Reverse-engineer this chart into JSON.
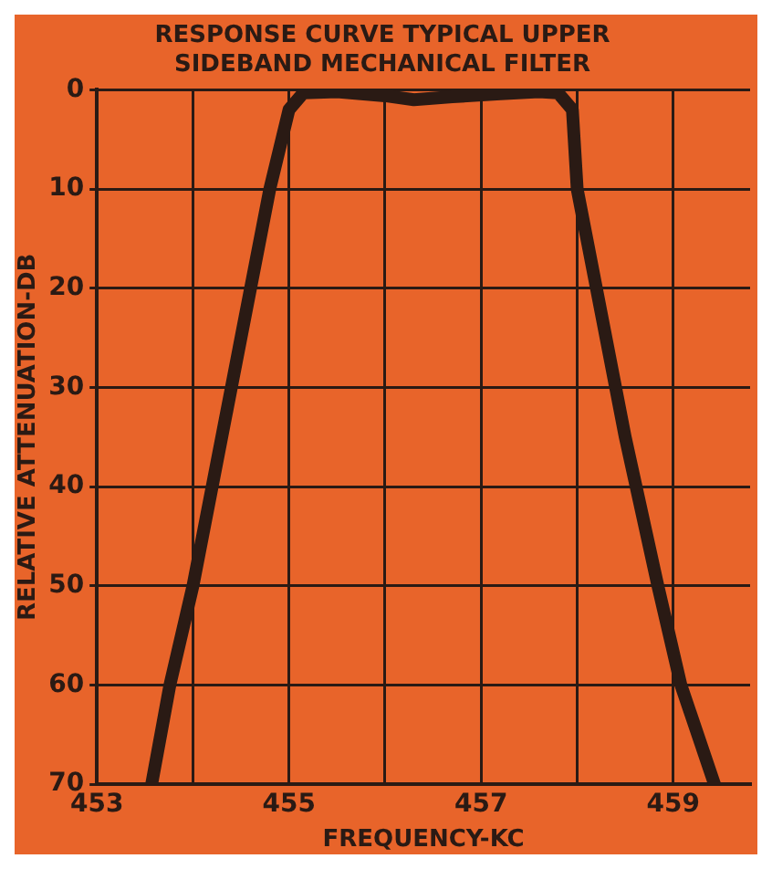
{
  "chart_data": {
    "type": "line",
    "title": "RESPONSE CURVE TYPICAL UPPER SIDEBAND MECHANICAL FILTER",
    "xlabel": "FREQUENCY-KC",
    "ylabel": "RELATIVE ATTENUATION-DB",
    "x": [
      453.57,
      453.76,
      454.0,
      454.4,
      454.8,
      455.0,
      455.15,
      455.5,
      456.0,
      456.3,
      456.7,
      457.2,
      457.6,
      457.8,
      457.95,
      458.0,
      458.2,
      458.5,
      458.84,
      459.08,
      459.43
    ],
    "series": [
      {
        "color": "#2a1a14",
        "values": [
          70,
          60,
          50,
          30,
          10,
          2,
          0.3,
          0.2,
          0.6,
          1,
          0.7,
          0.4,
          0.2,
          0.3,
          2,
          10,
          20,
          35,
          50,
          60,
          70
        ]
      }
    ],
    "xlim": [
      453,
      459.8
    ],
    "xticks": [
      453,
      {
        "value": 454,
        "label": null
      },
      455,
      {
        "value": 456,
        "label": null
      },
      457,
      {
        "value": 458,
        "label": null
      },
      459
    ],
    "ylim": [
      70,
      0
    ],
    "yticks": [
      0,
      10,
      20,
      30,
      40,
      50,
      60,
      70
    ],
    "grid": true,
    "legend": false,
    "marker": "none",
    "line_style": "solid"
  }
}
